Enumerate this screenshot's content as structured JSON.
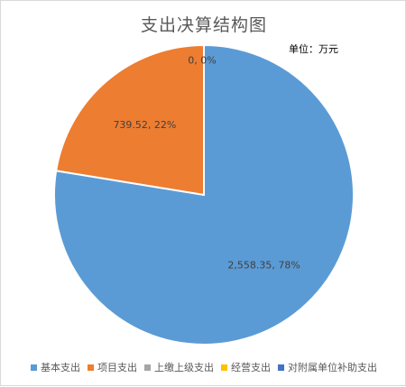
{
  "chart_data": {
    "type": "pie",
    "title": "支出决算结构图",
    "unit_note": "单位：万元",
    "legend_position": "bottom",
    "start": "top",
    "direction": "clockwise",
    "series": [
      {
        "name": "基本支出",
        "value": 2558.35,
        "label": "2,558.35, 78%",
        "color": "#5b9bd5"
      },
      {
        "name": "项目支出",
        "value": 739.52,
        "label": "739.52, 22%",
        "color": "#ed7d31"
      },
      {
        "name": "上缴上级支出",
        "value": 0,
        "label": "0, 0%",
        "color": "#a5a5a5"
      },
      {
        "name": "经营支出",
        "value": 0,
        "label": "",
        "color": "#ffc000"
      },
      {
        "name": "对附属单位补助支出",
        "value": 0,
        "label": "",
        "color": "#4472c4"
      }
    ]
  }
}
